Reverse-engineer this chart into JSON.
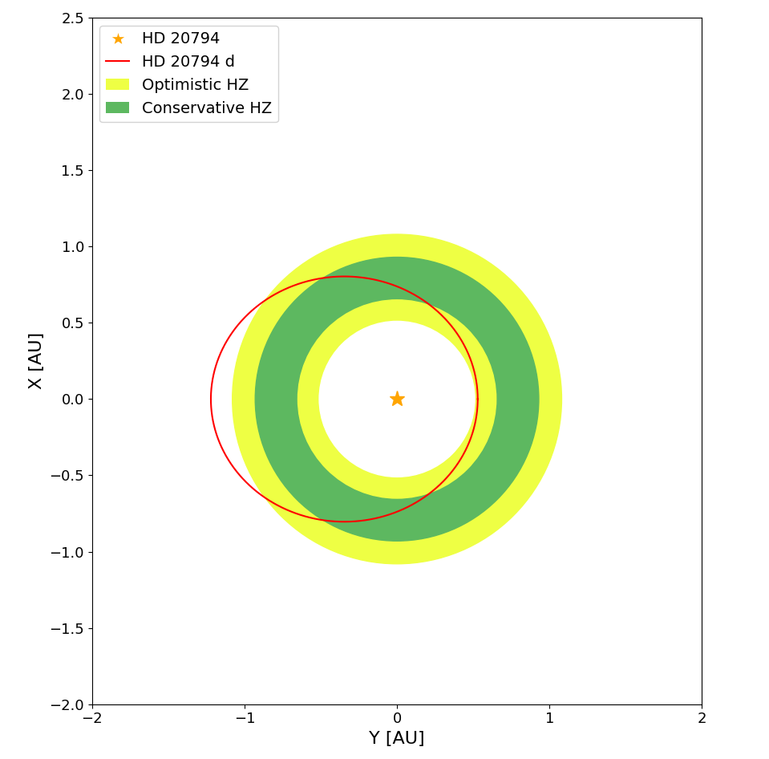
{
  "title": "",
  "xlabel": "Y [AU]",
  "ylabel": "X [AU]",
  "xlim": [
    -2,
    2
  ],
  "ylim": [
    -2,
    2.5
  ],
  "xticks": [
    -2,
    -1,
    0,
    1,
    2
  ],
  "yticks": [
    -2,
    -1.5,
    -1,
    -0.5,
    0,
    0.5,
    1,
    1.5,
    2,
    2.5
  ],
  "star_x": 0,
  "star_y": 0,
  "star_color": "#FFA500",
  "star_marker": "*",
  "optimistic_hz_inner": 0.51,
  "optimistic_hz_outer": 1.08,
  "conservative_hz_inner": 0.65,
  "conservative_hz_outer": 0.93,
  "optimistic_hz_color": "#EEFF44",
  "conservative_hz_color": "#5DB860",
  "orbit_color": "red",
  "orbit_linewidth": 1.5,
  "semi_major_axis": 0.875,
  "eccentricity": 0.395,
  "legend_star_label": "HD 20794",
  "legend_orbit_label": "HD 20794 d",
  "legend_opt_label": "Optimistic HZ",
  "legend_con_label": "Conservative HZ",
  "figsize": [
    9.59,
    9.46
  ],
  "dpi": 100
}
